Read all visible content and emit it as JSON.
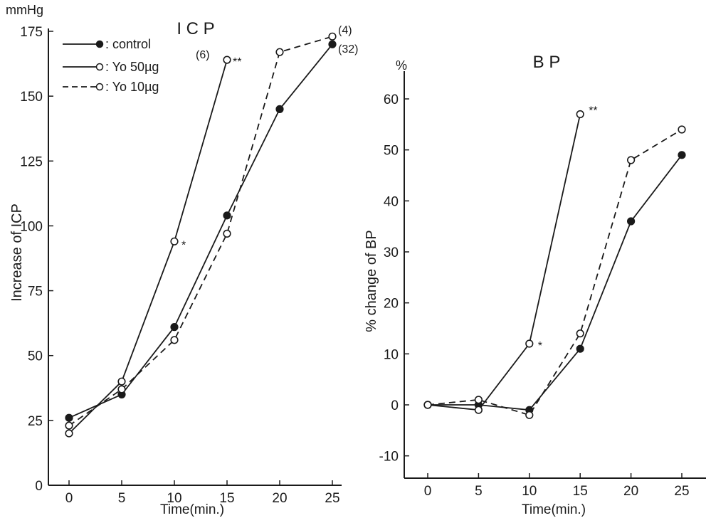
{
  "chart_data": [
    {
      "type": "line",
      "title": "I C P",
      "unit_label": "mmHg",
      "xlabel": "Time(min.)",
      "ylabel": "Increase of ICP",
      "xlim": [
        0,
        26
      ],
      "ylim": [
        0,
        175
      ],
      "xticks": [
        "0",
        "5",
        "10",
        "15",
        "20",
        "25"
      ],
      "yticks": [
        "0",
        "25",
        "50",
        "75",
        "100",
        "125",
        "150",
        "175"
      ],
      "grid": false,
      "legend_position": "top-left",
      "series": [
        {
          "name": ": control",
          "style": "solid",
          "marker": "filled",
          "x": [
            0,
            5,
            10,
            15,
            20,
            25
          ],
          "y": [
            26,
            35,
            61,
            104,
            145,
            170
          ]
        },
        {
          "name": ": Yo 50µg",
          "style": "solid",
          "marker": "open",
          "x": [
            0,
            5,
            10,
            15
          ],
          "y": [
            20,
            40,
            94,
            164
          ]
        },
        {
          "name": ": Yo 10µg",
          "style": "dashed",
          "marker": "open",
          "x": [
            0,
            5,
            10,
            15,
            20,
            25
          ],
          "y": [
            23,
            37,
            56,
            97,
            167,
            173
          ]
        }
      ],
      "annotations": [
        {
          "text": "(6)",
          "x": 15,
          "y": 164
        },
        {
          "text": "**",
          "x": 15,
          "y": 164
        },
        {
          "text": "*",
          "x": 10,
          "y": 94
        },
        {
          "text": "(4)",
          "x": 25,
          "y": 173
        },
        {
          "text": "(32)",
          "x": 25,
          "y": 170
        }
      ]
    },
    {
      "type": "line",
      "title": "B P",
      "unit_label": "%",
      "xlabel": "Time(min.)",
      "ylabel": "% change of BP",
      "xlim": [
        0,
        26
      ],
      "ylim": [
        -10,
        60
      ],
      "xticks": [
        "0",
        "5",
        "10",
        "15",
        "20",
        "25"
      ],
      "yticks": [
        "-10",
        "0",
        "10",
        "20",
        "30",
        "40",
        "50",
        "60"
      ],
      "grid": false,
      "series": [
        {
          "name": "control",
          "style": "solid",
          "marker": "filled",
          "x": [
            0,
            5,
            10,
            15,
            20,
            25
          ],
          "y": [
            0,
            0,
            -1,
            11,
            36,
            49
          ]
        },
        {
          "name": "Yo 50µg",
          "style": "solid",
          "marker": "open",
          "x": [
            0,
            5,
            10,
            15
          ],
          "y": [
            0,
            -1,
            12,
            57
          ]
        },
        {
          "name": "Yo 10µg",
          "style": "dashed",
          "marker": "open",
          "x": [
            0,
            5,
            10,
            15,
            20,
            25
          ],
          "y": [
            0,
            1,
            -2,
            14,
            48,
            54
          ]
        }
      ],
      "annotations": [
        {
          "text": "**",
          "x": 15,
          "y": 57
        },
        {
          "text": "*",
          "x": 10,
          "y": 12
        }
      ]
    }
  ]
}
